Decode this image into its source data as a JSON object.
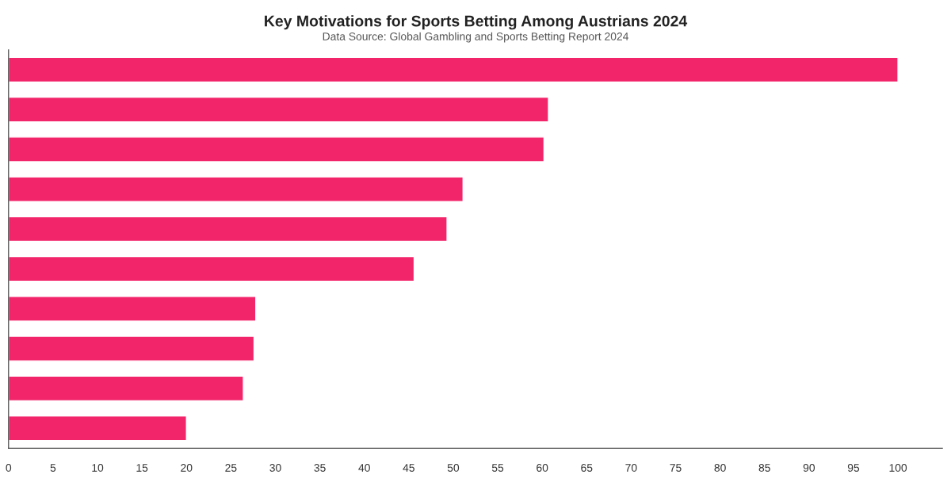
{
  "chart_data": {
    "type": "bar",
    "orientation": "horizontal",
    "title": "Key Motivations for Sports Betting Among Austrians 2024",
    "subtitle": "Data Source: Global Gambling and Sports Betting Report 2024",
    "categories": [
      null,
      null,
      null,
      null,
      null,
      null,
      null,
      null,
      null,
      null
    ],
    "values": [
      100,
      60.7,
      60.2,
      51.1,
      49.3,
      45.6,
      27.8,
      27.6,
      26.4,
      20.0
    ],
    "color": "#f2246a",
    "xlim": [
      0,
      105
    ],
    "xticks": [
      0,
      5,
      10,
      15,
      20,
      25,
      30,
      35,
      40,
      45,
      50,
      55,
      60,
      65,
      70,
      75,
      80,
      85,
      90,
      95,
      100
    ],
    "grid": false,
    "legend": false
  }
}
